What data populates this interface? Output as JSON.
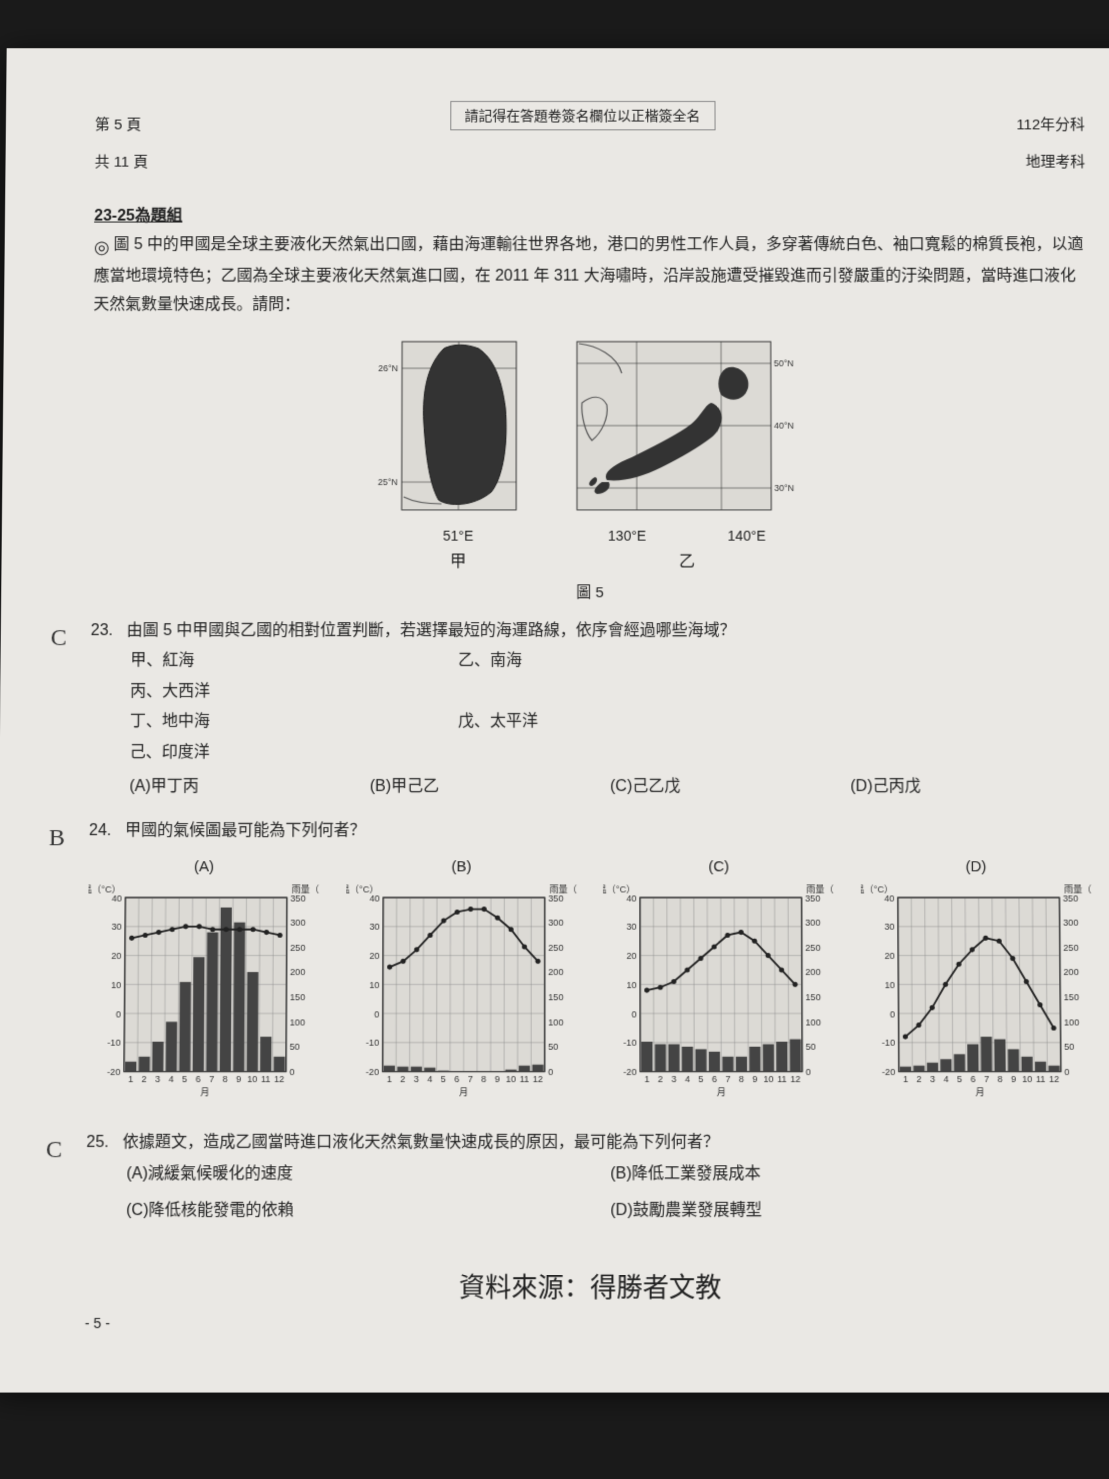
{
  "header": {
    "page_current": "第  5  頁",
    "page_total": "共 11 頁",
    "center_note": "請記得在答題卷簽名欄位以正楷簽全名",
    "year": "112年分科",
    "subject": "地理考科"
  },
  "group_title": "23-25為題組",
  "intro_text": "圖 5 中的甲國是全球主要液化天然氣出口國，藉由海運輸往世界各地，港口的男性工作人員，多穿著傳統白色、袖口寬鬆的棉質長袍，以適應當地環境特色；乙國為全球主要液化天然氣進口國，在 2011 年 311 大海嘯時，沿岸設施遭受摧毀進而引發嚴重的汙染問題，當時進口液化天然氣數量快速成長。請問：",
  "circ_mark": "◎",
  "maps": {
    "a": {
      "label": "甲",
      "lon_label": "51°E",
      "lat_top": "26°N",
      "lat_bot": "25°N",
      "outline_color": "#333",
      "fill_color": "#333",
      "bg_color": "#dcdad5"
    },
    "b": {
      "label": "乙",
      "lon1": "130°E",
      "lon2": "140°E",
      "lat_top": "50°N",
      "lat_mid": "40°N",
      "lat_bot": "30°N",
      "outline_color": "#333",
      "fill_color": "#333",
      "bg_color": "#dcdad5"
    },
    "fig_label": "圖 5"
  },
  "q23": {
    "handwritten_ans": "C",
    "num": "23.",
    "text": "由圖 5 中甲國與乙國的相對位置判斷，若選擇最短的海運路線，依序會經過哪些海域？",
    "seas": {
      "a": "甲、紅海",
      "b": "乙、南海",
      "c": "丙、大西洋",
      "d": "丁、地中海",
      "e": "戊、太平洋",
      "f": "己、印度洋"
    },
    "choices": {
      "A": "(A)甲丁丙",
      "B": "(B)甲己乙",
      "C": "(C)己乙戊",
      "D": "(D)己丙戊"
    }
  },
  "q24": {
    "handwritten_ans": "B",
    "num": "24.",
    "text": "甲國的氣候圖最可能為下列何者？",
    "labels": {
      "A": "(A)",
      "B": "(B)",
      "C": "(C)",
      "D": "(D)"
    },
    "axis": {
      "temp_label": "氣溫（°C）",
      "rain_label": "雨量（mm）",
      "temp_ticks": [
        -20,
        -10,
        0,
        10,
        20,
        30,
        40
      ],
      "rain_ticks": [
        0,
        50,
        100,
        150,
        200,
        250,
        300,
        350
      ],
      "months_label": "月",
      "months": [
        1,
        2,
        3,
        4,
        5,
        6,
        7,
        8,
        9,
        10,
        11,
        12
      ],
      "temp_color": "#222",
      "bar_color": "#444",
      "grid_color": "#888",
      "bg_color": "#dcdad5"
    },
    "data": {
      "A": {
        "temp": [
          26,
          27,
          28,
          29,
          30,
          30,
          29,
          29,
          29,
          29,
          28,
          27
        ],
        "rain": [
          20,
          30,
          60,
          100,
          180,
          230,
          280,
          330,
          300,
          200,
          70,
          30
        ]
      },
      "B": {
        "temp": [
          16,
          18,
          22,
          27,
          32,
          35,
          36,
          36,
          33,
          29,
          23,
          18
        ],
        "rain": [
          12,
          10,
          10,
          8,
          2,
          0,
          0,
          0,
          1,
          4,
          12,
          14
        ]
      },
      "C": {
        "temp": [
          8,
          9,
          11,
          15,
          19,
          23,
          27,
          28,
          25,
          20,
          15,
          10
        ],
        "rain": [
          60,
          55,
          55,
          50,
          45,
          40,
          30,
          30,
          50,
          55,
          60,
          65
        ]
      },
      "D": {
        "temp": [
          -8,
          -4,
          2,
          10,
          17,
          22,
          26,
          25,
          19,
          11,
          3,
          -5
        ],
        "rain": [
          10,
          12,
          18,
          25,
          35,
          55,
          70,
          65,
          45,
          30,
          20,
          12
        ]
      }
    }
  },
  "q25": {
    "handwritten_ans": "C",
    "num": "25.",
    "text": "依據題文，造成乙國當時進口液化天然氣數量快速成長的原因，最可能為下列何者？",
    "choices": {
      "A": "(A)減緩氣候暖化的速度",
      "B": "(B)降低工業發展成本",
      "C": "(C)降低核能發電的依賴",
      "D": "(D)鼓勵農業發展轉型"
    }
  },
  "footnote": "資料來源：得勝者文教",
  "page_num": "- 5 -"
}
